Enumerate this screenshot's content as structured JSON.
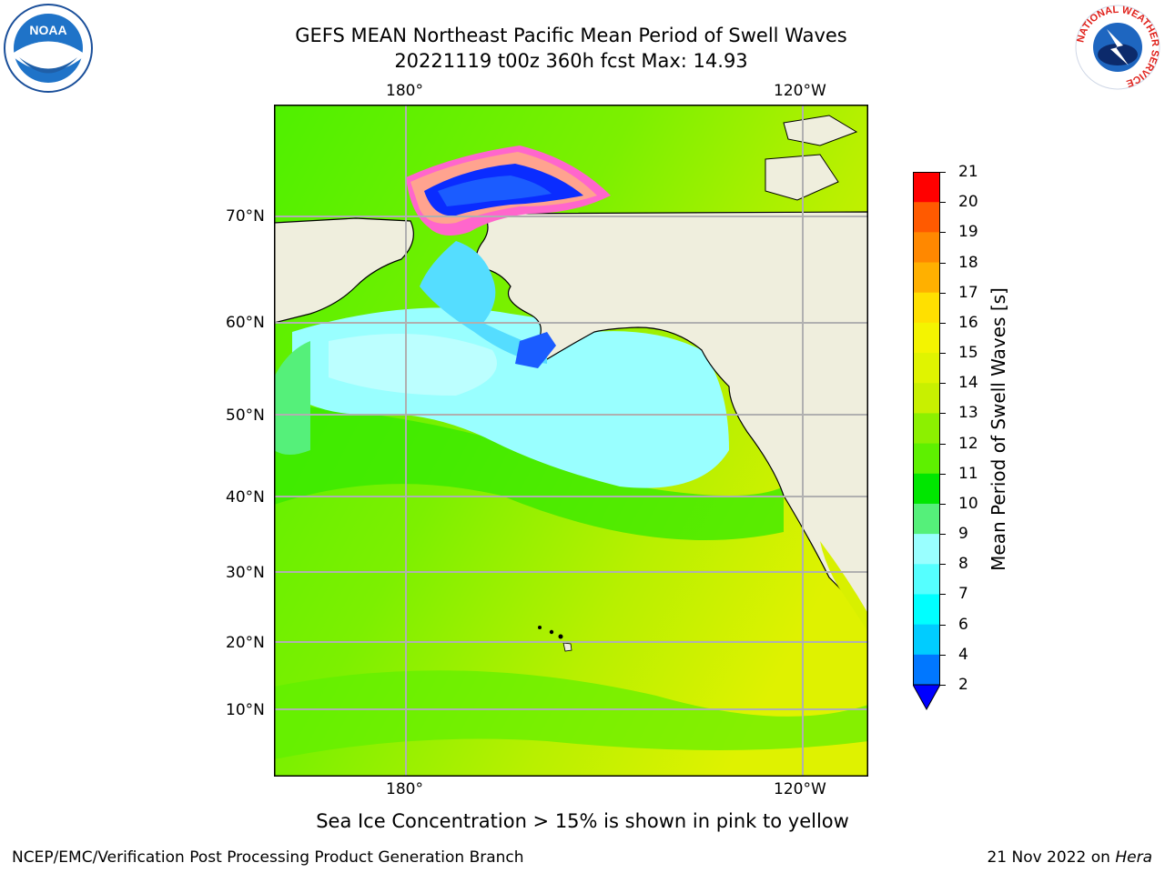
{
  "title": {
    "line1": "GEFS MEAN Northeast Pacific Mean Period of Swell Waves",
    "line2": "20221119 t00z 360h fcst   Max: 14.93"
  },
  "map": {
    "lon_labels": [
      "180°",
      "120°W"
    ],
    "lat_labels": [
      "70°N",
      "60°N",
      "50°N",
      "40°N",
      "30°N",
      "20°N",
      "10°N"
    ],
    "field_colors": {
      "ocean_main": "#5ef000",
      "ocean_yellowgreen": "#c8f000",
      "cyan_region": "#99ffff",
      "ice_blue": "#0040ff",
      "land": "#efeedd",
      "grid": "#b0b0b0"
    }
  },
  "colorbar": {
    "label": "Mean Period of Swell Waves [s]",
    "ticks": [
      "21",
      "20",
      "19",
      "18",
      "17",
      "16",
      "15",
      "14",
      "13",
      "12",
      "11",
      "10",
      "9",
      "8",
      "7",
      "6",
      "4",
      "2"
    ],
    "colors": [
      "#ff0000",
      "#ff3300",
      "#ff5a00",
      "#ff8800",
      "#ffb000",
      "#ffe000",
      "#f4f400",
      "#e0f400",
      "#c8f000",
      "#8cf000",
      "#5ef000",
      "#00e600",
      "#55f07a",
      "#99ffff",
      "#55ffff",
      "#00ffff",
      "#00ccff",
      "#0077ff"
    ],
    "extend_color": "#0000ff"
  },
  "note": "Sea Ice Concentration > 15% is shown in pink to yellow",
  "footer": {
    "left": "NCEP/EMC/Verification Post Processing Product Generation Branch",
    "right_prefix": "21 Nov 2022 on ",
    "right_host": "Hera"
  },
  "logos": {
    "noaa": "NOAA",
    "nws_ring": "NATIONAL WEATHER SERVICE"
  }
}
